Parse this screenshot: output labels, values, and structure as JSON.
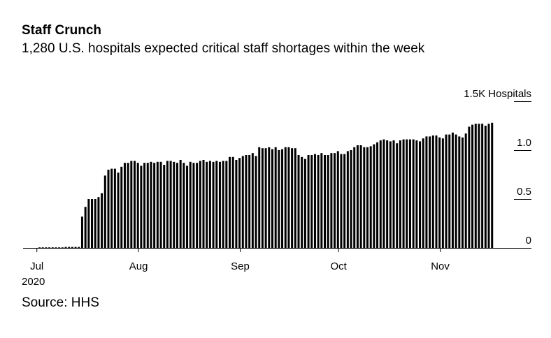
{
  "chart_data": {
    "type": "bar",
    "title": "Staff Crunch",
    "subtitle": "1,280 U.S. hospitals expected critical staff shortages within the week",
    "source": "Source: HHS",
    "ylabel": "1.5K Hospitals",
    "unit": "thousand hospitals",
    "ylim": [
      0,
      1.5
    ],
    "yticks": [
      {
        "value": 0,
        "label": "0"
      },
      {
        "value": 0.5,
        "label": "0.5"
      },
      {
        "value": 1.0,
        "label": "1.0"
      },
      {
        "value": 1.5,
        "label": "1.5K Hospitals"
      }
    ],
    "xticks": [
      {
        "day": 0,
        "label": "Jul",
        "sublabel": "2020"
      },
      {
        "day": 31,
        "label": "Aug"
      },
      {
        "day": 62,
        "label": "Sep"
      },
      {
        "day": 92,
        "label": "Oct"
      },
      {
        "day": 123,
        "label": "Nov"
      }
    ],
    "start_date": "2020-07-01",
    "interval": "daily",
    "values": [
      0.004,
      0.004,
      0.004,
      0.004,
      0.004,
      0.004,
      0.004,
      0.004,
      0.01,
      0.01,
      0.01,
      0.01,
      0.01,
      0.32,
      0.42,
      0.5,
      0.5,
      0.5,
      0.52,
      0.56,
      0.74,
      0.8,
      0.81,
      0.81,
      0.77,
      0.83,
      0.87,
      0.87,
      0.89,
      0.89,
      0.87,
      0.84,
      0.87,
      0.87,
      0.88,
      0.87,
      0.88,
      0.88,
      0.85,
      0.89,
      0.89,
      0.88,
      0.87,
      0.9,
      0.87,
      0.84,
      0.88,
      0.87,
      0.87,
      0.89,
      0.9,
      0.88,
      0.89,
      0.88,
      0.89,
      0.88,
      0.89,
      0.89,
      0.93,
      0.93,
      0.9,
      0.92,
      0.94,
      0.95,
      0.95,
      0.97,
      0.94,
      1.03,
      1.02,
      1.02,
      1.03,
      1.01,
      1.03,
      1.0,
      1.01,
      1.03,
      1.03,
      1.02,
      1.02,
      0.95,
      0.93,
      0.91,
      0.95,
      0.95,
      0.96,
      0.95,
      0.97,
      0.95,
      0.95,
      0.97,
      0.97,
      0.99,
      0.96,
      0.96,
      0.99,
      1.0,
      1.03,
      1.05,
      1.05,
      1.03,
      1.03,
      1.04,
      1.06,
      1.08,
      1.1,
      1.11,
      1.1,
      1.09,
      1.1,
      1.07,
      1.1,
      1.11,
      1.11,
      1.11,
      1.11,
      1.1,
      1.09,
      1.12,
      1.14,
      1.14,
      1.15,
      1.15,
      1.13,
      1.12,
      1.16,
      1.16,
      1.18,
      1.16,
      1.14,
      1.13,
      1.17,
      1.24,
      1.26,
      1.27,
      1.27,
      1.27,
      1.25,
      1.27,
      1.28
    ],
    "bar_color": "#000000",
    "grid": false
  }
}
